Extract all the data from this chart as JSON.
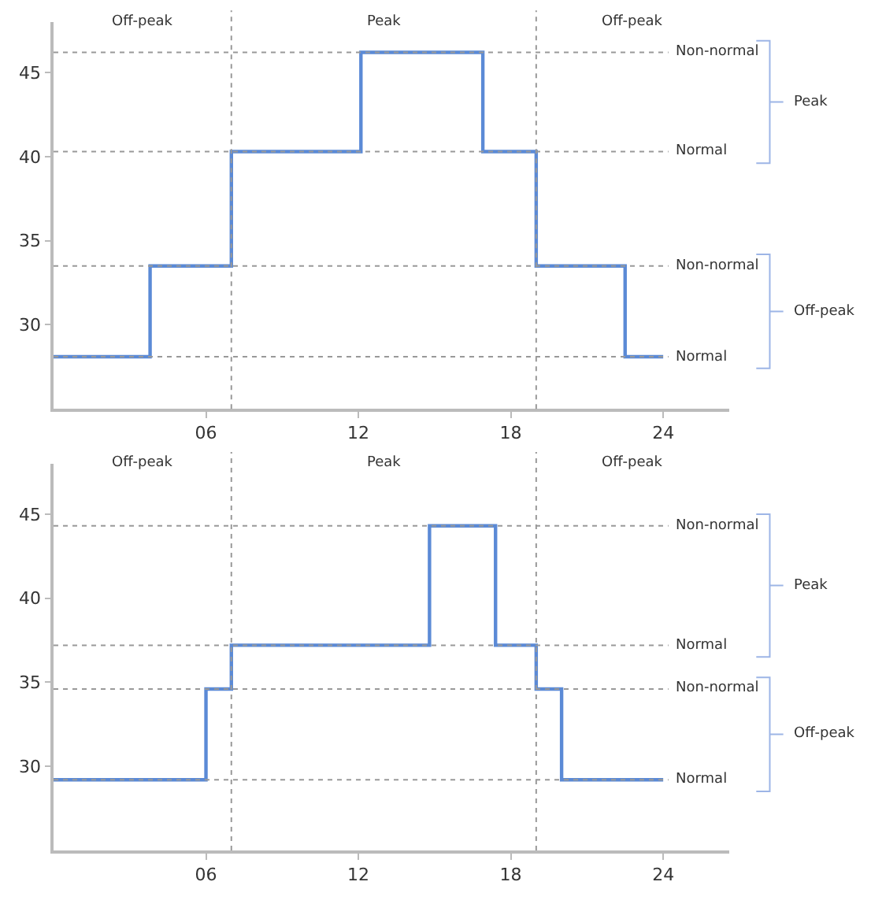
{
  "chart_data": [
    {
      "type": "step",
      "x": [
        0,
        3.8,
        7,
        12.1,
        16.9,
        19,
        22.5,
        24
      ],
      "series": [
        {
          "color": "#5b8ad6",
          "values": [
            28.1,
            33.5,
            40.3,
            46.2,
            40.3,
            33.5,
            28.1,
            28.1
          ]
        }
      ],
      "xlim": [
        0,
        26.6
      ],
      "ylim": [
        25,
        48
      ],
      "xticks": [
        {
          "value": 6,
          "label": "06"
        },
        12,
        18,
        24
      ],
      "yticks": [
        30,
        35,
        40,
        45
      ],
      "line_style": "solid",
      "marker": "none",
      "ref_lines": [
        {
          "axis": "y",
          "value": 46.2,
          "label": "Non-normal",
          "line_style": "dotted",
          "color": "#999999"
        },
        {
          "axis": "y",
          "value": 40.3,
          "label": "Normal",
          "line_style": "dotted",
          "color": "#999999"
        },
        {
          "axis": "y",
          "value": 33.5,
          "label": "Non-normal",
          "line_style": "dotted",
          "color": "#999999"
        },
        {
          "axis": "y",
          "value": 28.1,
          "label": "Normal",
          "line_style": "dotted",
          "color": "#999999"
        },
        {
          "axis": "x",
          "value": 7,
          "line_style": "dotted",
          "color": "#999999"
        },
        {
          "axis": "x",
          "value": 19,
          "line_style": "dotted",
          "color": "#999999"
        }
      ],
      "annotations": [
        "Off-peak",
        "Peak",
        "Off-peak",
        "Peak",
        "Off-peak"
      ]
    },
    {
      "type": "step",
      "x": [
        0,
        6,
        7,
        14.8,
        17.4,
        19,
        20,
        24
      ],
      "series": [
        {
          "color": "#5b8ad6",
          "values": [
            29.2,
            34.6,
            37.2,
            44.3,
            37.2,
            34.6,
            29.2,
            29.2
          ]
        }
      ],
      "xlim": [
        0,
        26.6
      ],
      "ylim": [
        25,
        48
      ],
      "xticks": [
        {
          "value": 6,
          "label": "06"
        },
        12,
        18,
        24
      ],
      "yticks": [
        30,
        35,
        40,
        45
      ],
      "line_style": "solid",
      "marker": "none",
      "ref_lines": [
        {
          "axis": "y",
          "value": 44.3,
          "label": "Non-normal",
          "line_style": "dotted",
          "color": "#999999"
        },
        {
          "axis": "y",
          "value": 37.2,
          "label": "Normal",
          "line_style": "dotted",
          "color": "#999999"
        },
        {
          "axis": "y",
          "value": 34.6,
          "label": "Non-normal",
          "line_style": "dotted",
          "color": "#999999"
        },
        {
          "axis": "y",
          "value": 29.2,
          "label": "Normal",
          "line_style": "dotted",
          "color": "#999999"
        },
        {
          "axis": "x",
          "value": 7,
          "line_style": "dotted",
          "color": "#999999"
        },
        {
          "axis": "x",
          "value": 19,
          "line_style": "dotted",
          "color": "#999999"
        }
      ],
      "annotations": [
        "Off-peak",
        "Peak",
        "Off-peak",
        "Peak",
        "Off-peak"
      ]
    }
  ]
}
